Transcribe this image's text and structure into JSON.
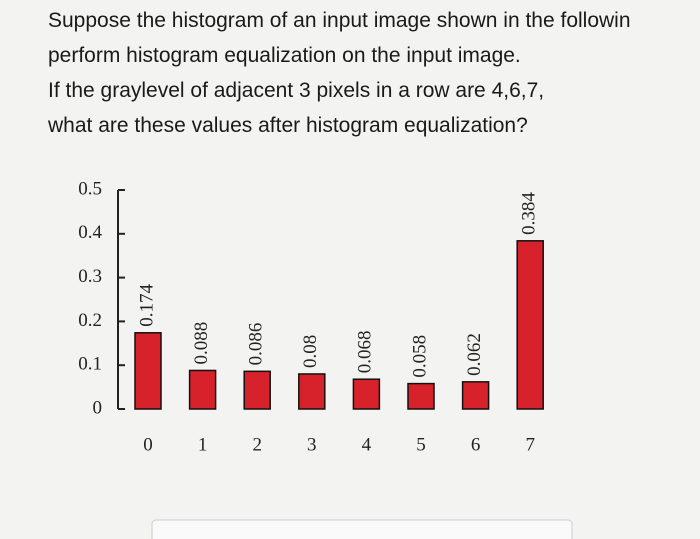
{
  "question": [
    "Suppose the histogram of an input image  shown in the followin",
    "perform histogram equalization on the input image.",
    "If the graylevel of adjacent 3 pixels in a row are 4,6,7,",
    "what are these values after histogram equalization?"
  ],
  "chart_data": {
    "type": "bar",
    "categories": [
      "0",
      "1",
      "2",
      "3",
      "4",
      "5",
      "6",
      "7"
    ],
    "values": [
      0.174,
      0.088,
      0.086,
      0.08,
      0.068,
      0.058,
      0.062,
      0.384
    ],
    "color": "#d8222b",
    "ylim": [
      0,
      0.5
    ],
    "yticks": [
      0,
      0.1,
      0.2,
      0.3,
      0.4,
      0.5
    ],
    "grid": false
  }
}
